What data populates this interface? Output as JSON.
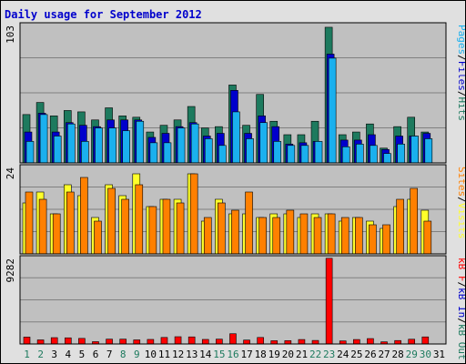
{
  "title": "Daily usage for September 2012",
  "colors": {
    "frame_bg": "#e0e0e0",
    "plot_bg": "#c0c0c0",
    "grid": "#808080",
    "hits": "#1d7a5e",
    "files": "#0000cc",
    "pages": "#1ab0ee",
    "visits": "#ffff2a",
    "sites": "#ff8000",
    "kb_f": "#ff0000",
    "kb_in": "#0000cc",
    "kb_out": "#1d7a5e",
    "title": "#0000cc",
    "axis_text": "#000000",
    "day_normal": "#000000",
    "day_weekend": "#1d7a5e"
  },
  "chart_data": [
    {
      "type": "bar",
      "panel": "hits-files-pages",
      "ymax_label": "103",
      "ylim": [
        0,
        103
      ],
      "grid": true,
      "legend": [
        {
          "text": "Pages",
          "color": "#1ab0ee"
        },
        {
          "text": "Files",
          "color": "#0000cc"
        },
        {
          "text": "Hits",
          "color": "#1d7a5e"
        }
      ],
      "categories": [
        "1",
        "2",
        "3",
        "4",
        "5",
        "6",
        "7",
        "8",
        "9",
        "10",
        "11",
        "12",
        "13",
        "14",
        "15",
        "16",
        "17",
        "18",
        "19",
        "20",
        "21",
        "22",
        "23",
        "24",
        "25",
        "26",
        "27",
        "28",
        "29",
        "30",
        "31"
      ],
      "series": [
        {
          "name": "Hits",
          "color": "#1d7a5e",
          "values": [
            36,
            45,
            35,
            39,
            38,
            32,
            41,
            35,
            34,
            23,
            28,
            32,
            42,
            26,
            27,
            58,
            28,
            51,
            31,
            21,
            21,
            31,
            101,
            21,
            23,
            29,
            11,
            27,
            34,
            23,
            0
          ]
        },
        {
          "name": "Files",
          "color": "#0000cc",
          "values": [
            23,
            37,
            23,
            30,
            28,
            27,
            32,
            32,
            32,
            19,
            22,
            27,
            30,
            20,
            22,
            54,
            22,
            35,
            27,
            14,
            15,
            16,
            81,
            17,
            17,
            21,
            10,
            20,
            20,
            22,
            0
          ]
        },
        {
          "name": "Pages",
          "color": "#1ab0ee",
          "values": [
            16,
            36,
            20,
            29,
            16,
            26,
            26,
            24,
            31,
            15,
            15,
            26,
            29,
            18,
            13,
            38,
            18,
            30,
            16,
            13,
            13,
            16,
            78,
            12,
            14,
            13,
            7,
            14,
            20,
            18,
            0
          ]
        }
      ]
    },
    {
      "type": "bar",
      "panel": "visits-sites",
      "ymax_label": "24",
      "ylim": [
        0,
        24
      ],
      "grid": true,
      "legend": [
        {
          "text": "Sites",
          "color": "#ff8000"
        },
        {
          "text": "Visits",
          "color": "#ffff2a"
        }
      ],
      "categories": [
        "1",
        "2",
        "3",
        "4",
        "5",
        "6",
        "7",
        "8",
        "9",
        "10",
        "11",
        "12",
        "13",
        "14",
        "15",
        "16",
        "17",
        "18",
        "19",
        "20",
        "21",
        "22",
        "23",
        "24",
        "25",
        "26",
        "27",
        "28",
        "29",
        "30",
        "31"
      ],
      "series": [
        {
          "name": "Visits",
          "color": "#ffff2a",
          "values": [
            14,
            17,
            11,
            19,
            16,
            10,
            19,
            16,
            22,
            13,
            15,
            15,
            22,
            9,
            15,
            11,
            11,
            10,
            11,
            11,
            10,
            11,
            11,
            9,
            10,
            9,
            7,
            13,
            15,
            12,
            0
          ]
        },
        {
          "name": "Sites",
          "color": "#ff8000",
          "values": [
            17,
            15,
            11,
            17,
            21,
            9,
            18,
            15,
            19,
            13,
            15,
            14,
            22,
            10,
            14,
            12,
            17,
            10,
            10,
            12,
            11,
            10,
            11,
            10,
            10,
            8,
            8,
            15,
            18,
            9,
            0
          ]
        }
      ]
    },
    {
      "type": "bar",
      "panel": "kbytes",
      "ymax_label": "9282",
      "ylim": [
        0,
        9282
      ],
      "grid": true,
      "legend": [
        {
          "text": "kB F",
          "color": "#ff0000"
        },
        {
          "text": "kB In",
          "color": "#0000cc"
        },
        {
          "text": "kB Out",
          "color": "#1d7a5e"
        }
      ],
      "categories": [
        "1",
        "2",
        "3",
        "4",
        "5",
        "6",
        "7",
        "8",
        "9",
        "10",
        "11",
        "12",
        "13",
        "14",
        "15",
        "16",
        "17",
        "18",
        "19",
        "20",
        "21",
        "22",
        "23",
        "24",
        "25",
        "26",
        "27",
        "28",
        "29",
        "30",
        "31"
      ],
      "series": [
        {
          "name": "kB F",
          "color": "#ff0000",
          "values": [
            740,
            440,
            680,
            660,
            600,
            250,
            520,
            520,
            440,
            490,
            700,
            780,
            760,
            490,
            520,
            1100,
            420,
            700,
            350,
            360,
            480,
            380,
            9200,
            330,
            480,
            580,
            230,
            370,
            510,
            760,
            0
          ]
        }
      ]
    }
  ],
  "x_axis": {
    "days": [
      {
        "label": "1",
        "weekend": true
      },
      {
        "label": "2",
        "weekend": true
      },
      {
        "label": "3",
        "weekend": false
      },
      {
        "label": "4",
        "weekend": false
      },
      {
        "label": "5",
        "weekend": false
      },
      {
        "label": "6",
        "weekend": false
      },
      {
        "label": "7",
        "weekend": false
      },
      {
        "label": "8",
        "weekend": true
      },
      {
        "label": "9",
        "weekend": true
      },
      {
        "label": "10",
        "weekend": false
      },
      {
        "label": "11",
        "weekend": false
      },
      {
        "label": "12",
        "weekend": false
      },
      {
        "label": "13",
        "weekend": false
      },
      {
        "label": "14",
        "weekend": false
      },
      {
        "label": "15",
        "weekend": true
      },
      {
        "label": "16",
        "weekend": true
      },
      {
        "label": "17",
        "weekend": false
      },
      {
        "label": "18",
        "weekend": false
      },
      {
        "label": "19",
        "weekend": false
      },
      {
        "label": "20",
        "weekend": false
      },
      {
        "label": "21",
        "weekend": false
      },
      {
        "label": "22",
        "weekend": true
      },
      {
        "label": "23",
        "weekend": true
      },
      {
        "label": "24",
        "weekend": false
      },
      {
        "label": "25",
        "weekend": false
      },
      {
        "label": "26",
        "weekend": false
      },
      {
        "label": "27",
        "weekend": false
      },
      {
        "label": "28",
        "weekend": false
      },
      {
        "label": "29",
        "weekend": true
      },
      {
        "label": "30",
        "weekend": true
      },
      {
        "label": "31",
        "weekend": false
      }
    ]
  }
}
